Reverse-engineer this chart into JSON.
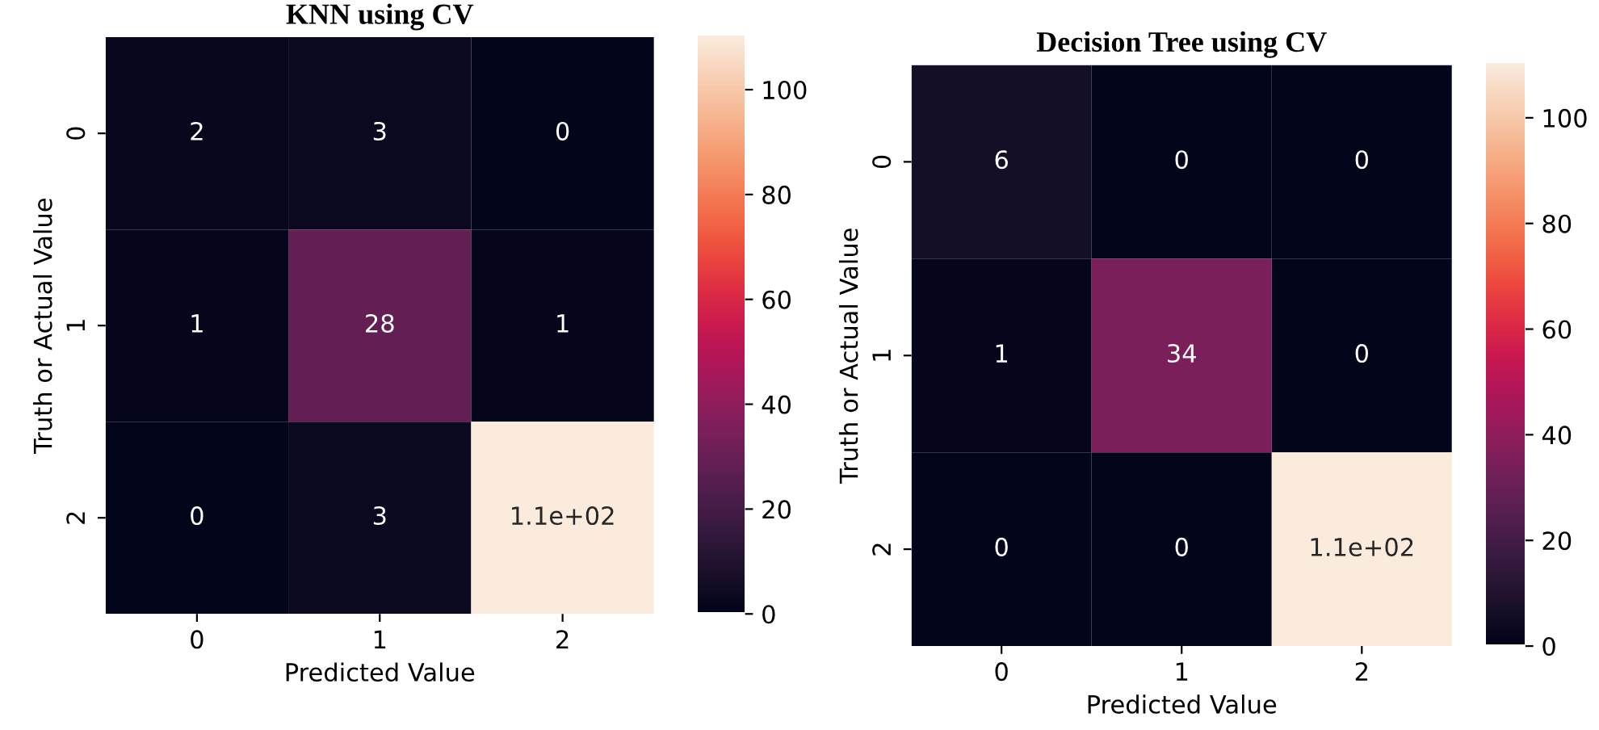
{
  "chart_data": [
    {
      "type": "heatmap",
      "title": "KNN using CV",
      "xlabel": "Predicted Value",
      "ylabel": "Truth or Actual Value",
      "categories": [
        "0",
        "1",
        "2"
      ],
      "y_categories": [
        "0",
        "1",
        "2"
      ],
      "cells": [
        [
          2,
          3,
          0
        ],
        [
          1,
          28,
          1
        ],
        [
          0,
          3,
          110
        ]
      ],
      "cell_labels": [
        [
          "2",
          "3",
          "0"
        ],
        [
          "1",
          "28",
          "1"
        ],
        [
          "0",
          "3",
          "1.1e+02"
        ]
      ],
      "clim": [
        0,
        110
      ],
      "cticks": [
        0,
        20,
        40,
        60,
        80,
        100
      ]
    },
    {
      "type": "heatmap",
      "title": "Decision Tree using CV",
      "xlabel": "Predicted Value",
      "ylabel": "Truth or Actual Value",
      "categories": [
        "0",
        "1",
        "2"
      ],
      "y_categories": [
        "0",
        "1",
        "2"
      ],
      "cells": [
        [
          6,
          0,
          0
        ],
        [
          1,
          34,
          0
        ],
        [
          0,
          0,
          110
        ]
      ],
      "cell_labels": [
        [
          "6",
          "0",
          "0"
        ],
        [
          "1",
          "34",
          "0"
        ],
        [
          "0",
          "0",
          "1.1e+02"
        ]
      ],
      "clim": [
        0,
        110
      ],
      "cticks": [
        0,
        20,
        40,
        60,
        80,
        100
      ]
    }
  ]
}
